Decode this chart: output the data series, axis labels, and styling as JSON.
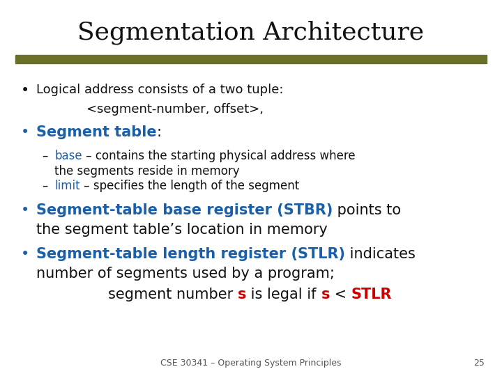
{
  "title": "Segmentation Architecture",
  "title_fontsize": 26,
  "title_font": "serif",
  "bar_color": "#6b7028",
  "blue_color": "#1a5fa8",
  "red_color": "#cc0000",
  "black_color": "#111111",
  "bg_color": "#ffffff",
  "footer_text": "CSE 30341 – Operating System Principles",
  "footer_page": "25"
}
